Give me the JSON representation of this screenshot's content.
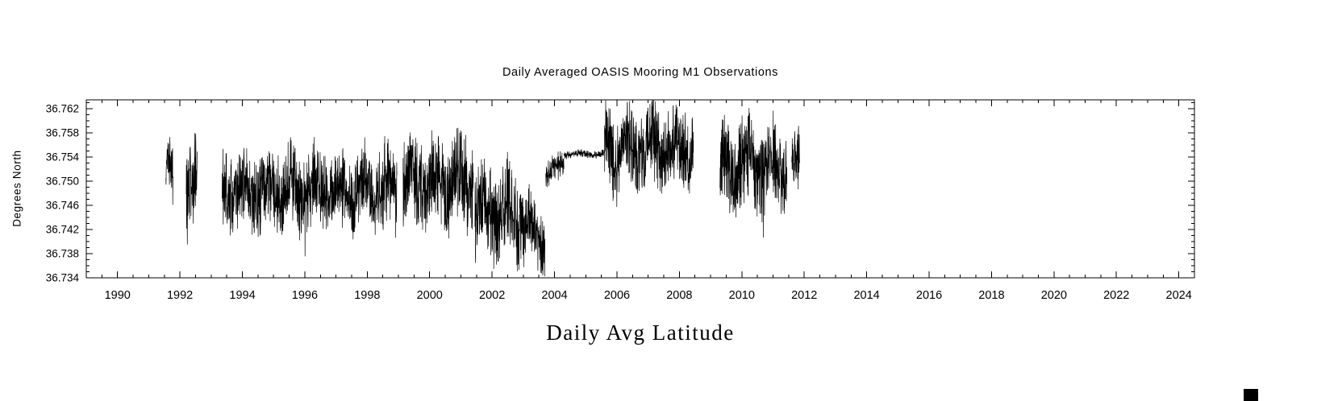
{
  "chart": {
    "background": "#ffffff",
    "frame_color": "#000000"
  },
  "chart_data": {
    "type": "line",
    "title": "Daily Averaged OASIS Mooring M1 Observations",
    "xlabel": "Daily Avg Latitude",
    "ylabel": "Degrees North",
    "line_color": "#000000",
    "grid": false,
    "legend": "none",
    "tick_direction": "in",
    "xlim": [
      1989.0,
      2024.5
    ],
    "ylim": [
      36.734,
      36.7635
    ],
    "x_ticks": [
      1990,
      1992,
      1994,
      1996,
      1998,
      2000,
      2002,
      2004,
      2006,
      2008,
      2010,
      2012,
      2014,
      2016,
      2018,
      2020,
      2022,
      2024
    ],
    "x_tick_labels": [
      "1990",
      "1992",
      "1994",
      "1996",
      "1998",
      "2000",
      "2002",
      "2004",
      "2006",
      "2008",
      "2010",
      "2012",
      "2014",
      "2016",
      "2018",
      "2020",
      "2022",
      "2024"
    ],
    "x_minor_step": 0.5,
    "y_ticks": [
      36.734,
      36.738,
      36.742,
      36.746,
      36.75,
      36.754,
      36.758,
      36.762
    ],
    "y_tick_labels": [
      "36.734",
      "36.738",
      "36.742",
      "36.746",
      "36.750",
      "36.754",
      "36.758",
      "36.762"
    ],
    "y_minor_step": 0.001,
    "series": [
      {
        "name": "Daily averaged latitude of OASIS Mooring M1",
        "units": "degrees north",
        "style": "dense daily noisy line, black, no data after 2011.85",
        "coverage_segments": [
          {
            "start": 1991.55,
            "end": 1991.78,
            "mean": 36.7515,
            "half_range": 0.006,
            "trend": 0
          },
          {
            "start": 1992.2,
            "end": 1992.55,
            "mean": 36.749,
            "half_range": 0.008,
            "trend": 0
          },
          {
            "start": 1993.35,
            "end": 1998.95,
            "mean": 36.7485,
            "half_range": 0.0078,
            "trend": 0
          },
          {
            "start": 1999.15,
            "end": 2001.4,
            "mean": 36.75,
            "half_range": 0.0088,
            "trend": 0
          },
          {
            "start": 2001.45,
            "end": 2003.05,
            "mean": 36.7455,
            "half_range": 0.0085,
            "trend": -0.001
          },
          {
            "start": 2003.05,
            "end": 2003.7,
            "mean": 36.7425,
            "half_range": 0.0068,
            "trend": -0.0025
          },
          {
            "start": 2003.72,
            "end": 2004.3,
            "mean": 36.751,
            "half_range": 0.0025,
            "trend": 0.002
          },
          {
            "start": 2004.3,
            "end": 2005.6,
            "mean": 36.7545,
            "half_range": 0.0007,
            "trend": 0
          },
          {
            "start": 2005.6,
            "end": 2008.45,
            "mean": 36.7555,
            "half_range": 0.0078,
            "trend": 0
          },
          {
            "start": 2009.3,
            "end": 2011.45,
            "mean": 36.7525,
            "half_range": 0.0085,
            "trend": 0
          },
          {
            "start": 2011.6,
            "end": 2011.85,
            "mean": 36.753,
            "half_range": 0.0058,
            "trend": 0
          }
        ]
      }
    ]
  }
}
